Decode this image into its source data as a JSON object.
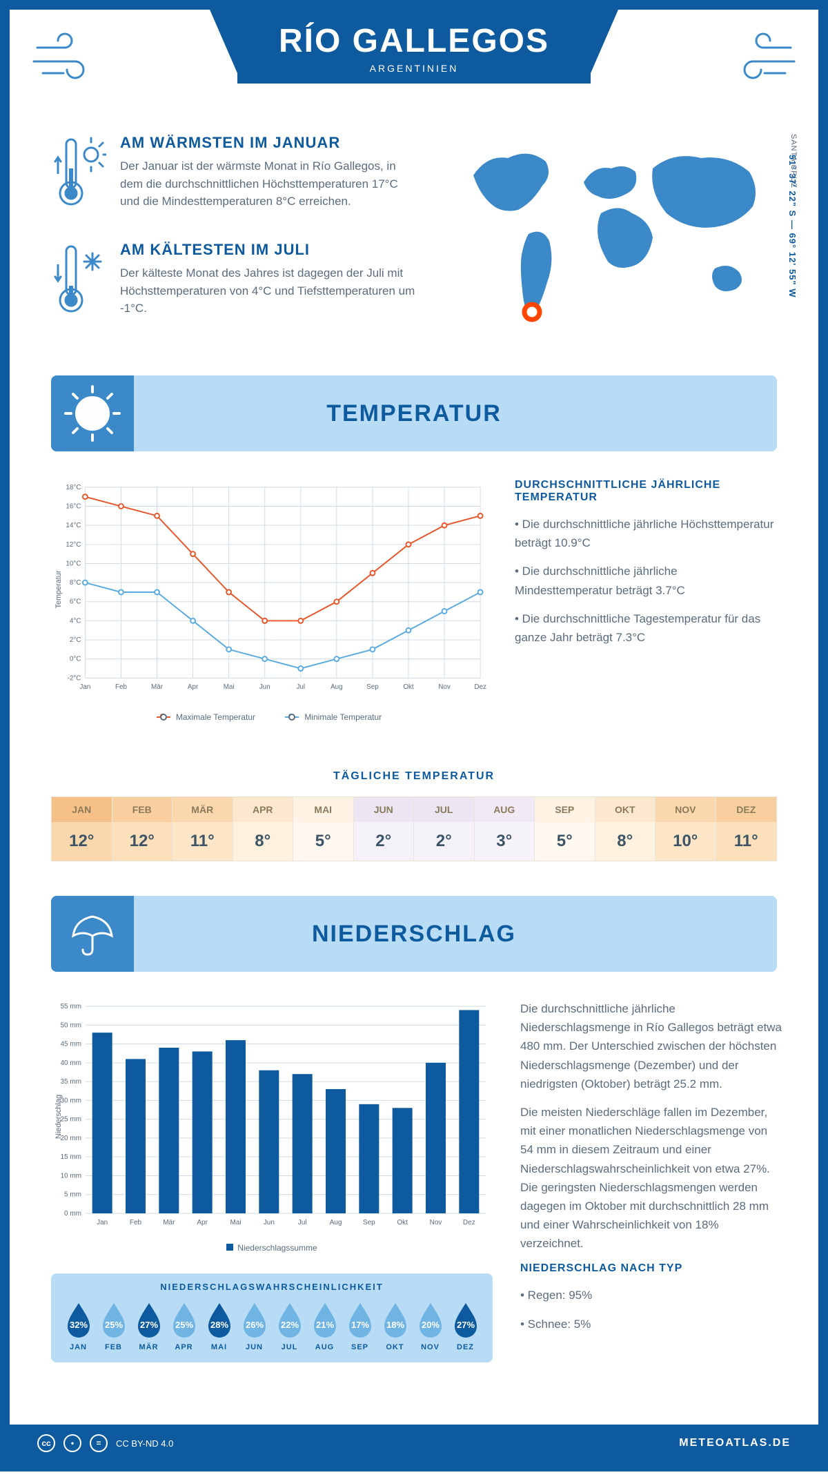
{
  "header": {
    "city": "RÍO GALLEGOS",
    "country": "ARGENTINIEN",
    "region": "SANTA CRUZ",
    "coords": "51° 37' 22\" S — 69° 12' 55\" W"
  },
  "colors": {
    "brand": "#0d5a9e",
    "brandLight": "#b8dcf5",
    "brandMid": "#3b89c9",
    "hot": "#e8562a",
    "cold": "#5aabdf",
    "grid": "#d9e2ea",
    "text": "#5a6c7d"
  },
  "warmest": {
    "title": "AM WÄRMSTEN IM JANUAR",
    "text": "Der Januar ist der wärmste Monat in Río Gallegos, in dem die durchschnittlichen Höchsttemperaturen 17°C und die Mindesttemperaturen 8°C erreichen."
  },
  "coldest": {
    "title": "AM KÄLTESTEN IM JULI",
    "text": "Der kälteste Monat des Jahres ist dagegen der Juli mit Höchsttemperaturen von 4°C und Tiefsttemperaturen um -1°C."
  },
  "tempSection": {
    "title": "TEMPERATUR",
    "sideTitle": "DURCHSCHNITTLICHE JÄHRLICHE TEMPERATUR",
    "bullets": [
      "• Die durchschnittliche jährliche Höchsttemperatur beträgt 10.9°C",
      "• Die durchschnittliche jährliche Mindesttemperatur beträgt 3.7°C",
      "• Die durchschnittliche Tagestemperatur für das ganze Jahr beträgt 7.3°C"
    ],
    "legendMax": "Maximale Temperatur",
    "legendMin": "Minimale Temperatur",
    "chart": {
      "months": [
        "Jan",
        "Feb",
        "Mär",
        "Apr",
        "Mai",
        "Jun",
        "Jul",
        "Aug",
        "Sep",
        "Okt",
        "Nov",
        "Dez"
      ],
      "max": [
        17,
        16,
        15,
        11,
        7,
        4,
        4,
        6,
        9,
        12,
        14,
        15
      ],
      "min": [
        8,
        7,
        7,
        4,
        1,
        0,
        -1,
        0,
        1,
        3,
        5,
        7
      ],
      "ylim": [
        -2,
        18
      ],
      "ystep": 2,
      "yAxisTitle": "Temperatur",
      "maxColor": "#e8562a",
      "minColor": "#5aabdf",
      "gridColor": "#cfdce5",
      "bgColor": "#ffffff"
    }
  },
  "dailyTemp": {
    "title": "TÄGLICHE TEMPERATUR",
    "months": [
      "JAN",
      "FEB",
      "MÄR",
      "APR",
      "MAI",
      "JUN",
      "JUL",
      "AUG",
      "SEP",
      "OKT",
      "NOV",
      "DEZ"
    ],
    "values": [
      "12°",
      "12°",
      "11°",
      "8°",
      "5°",
      "2°",
      "2°",
      "3°",
      "5°",
      "8°",
      "10°",
      "11°"
    ],
    "headerColors": [
      "#f6c089",
      "#f9cf9f",
      "#fad7ac",
      "#fce8cf",
      "#fef3e5",
      "#ece6f3",
      "#ece6f3",
      "#f1eaf5",
      "#fef3e5",
      "#fce8cf",
      "#fad7ac",
      "#f9cf9f"
    ],
    "valueColors": [
      "#fad7ac",
      "#fce0bb",
      "#fde6c7",
      "#fef1de",
      "#fef8f0",
      "#f5f1f8",
      "#f5f1f8",
      "#f7f3fa",
      "#fef8f0",
      "#fef1de",
      "#fde6c7",
      "#fce0bb"
    ]
  },
  "precipSection": {
    "title": "NIEDERSCHLAG",
    "chart": {
      "months": [
        "Jan",
        "Feb",
        "Mär",
        "Apr",
        "Mai",
        "Jun",
        "Jul",
        "Aug",
        "Sep",
        "Okt",
        "Nov",
        "Dez"
      ],
      "values": [
        48,
        41,
        44,
        43,
        46,
        38,
        37,
        33,
        29,
        28,
        40,
        54
      ],
      "ylim": [
        0,
        55
      ],
      "ystep": 5,
      "yAxisTitle": "Niederschlag",
      "barColor": "#0d5a9e",
      "gridColor": "#cfdce5",
      "barWidth": 0.6
    },
    "legendLabel": "Niederschlagssumme",
    "para1": "Die durchschnittliche jährliche Niederschlagsmenge in Río Gallegos beträgt etwa 480 mm. Der Unterschied zwischen der höchsten Niederschlagsmenge (Dezember) und der niedrigsten (Oktober) beträgt 25.2 mm.",
    "para2": "Die meisten Niederschläge fallen im Dezember, mit einer monatlichen Niederschlagsmenge von 54 mm in diesem Zeitraum und einer Niederschlagswahrscheinlichkeit von etwa 27%. Die geringsten Niederschlagsmengen werden dagegen im Oktober mit durchschnittlich 28 mm und einer Wahrscheinlichkeit von 18% verzeichnet.",
    "typeTitle": "NIEDERSCHLAG NACH TYP",
    "typeBullets": [
      "• Regen: 95%",
      "• Schnee: 5%"
    ]
  },
  "precipProb": {
    "title": "NIEDERSCHLAGSWAHRSCHEINLICHKEIT",
    "months": [
      "JAN",
      "FEB",
      "MÄR",
      "APR",
      "MAI",
      "JUN",
      "JUL",
      "AUG",
      "SEP",
      "OKT",
      "NOV",
      "DEZ"
    ],
    "values": [
      "32%",
      "25%",
      "27%",
      "25%",
      "28%",
      "26%",
      "22%",
      "21%",
      "17%",
      "18%",
      "20%",
      "27%"
    ],
    "fillColors": [
      "#0d5a9e",
      "#6fb4e3",
      "#0d5a9e",
      "#6fb4e3",
      "#0d5a9e",
      "#6fb4e3",
      "#6fb4e3",
      "#6fb4e3",
      "#6fb4e3",
      "#6fb4e3",
      "#6fb4e3",
      "#0d5a9e"
    ]
  },
  "footer": {
    "license": "CC BY-ND 4.0",
    "site": "METEOATLAS.DE"
  }
}
